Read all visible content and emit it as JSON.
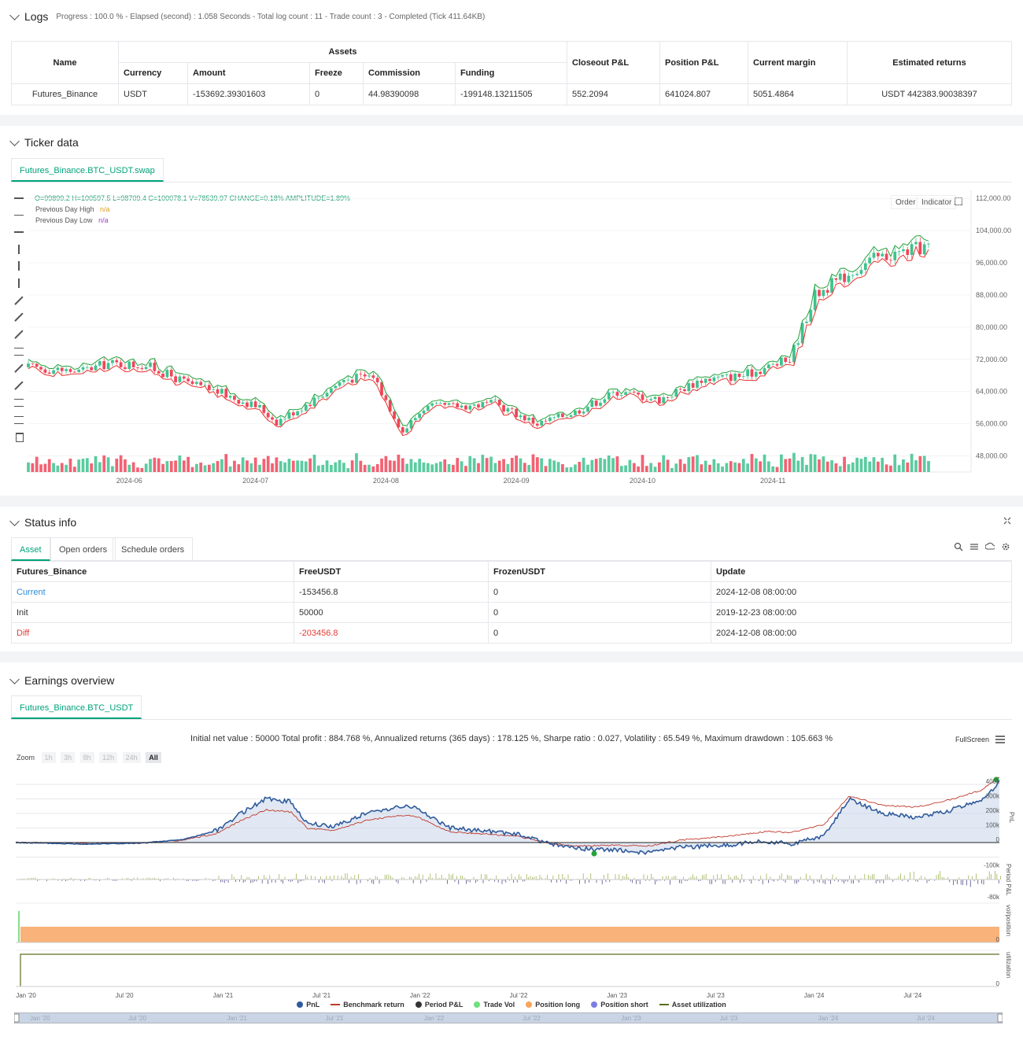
{
  "logs": {
    "title": "Logs",
    "progress": "Progress : 100.0 % - Elapsed (second) : 1.058 Seconds - Total log count : 11 - Trade count : 3 - Completed (Tick 411.64KB)"
  },
  "assets_table": {
    "headers": {
      "name": "Name",
      "assets": "Assets",
      "currency": "Currency",
      "amount": "Amount",
      "freeze": "Freeze",
      "commission": "Commission",
      "funding": "Funding",
      "closeout": "Closeout P&L",
      "position": "Position P&L",
      "margin": "Current margin",
      "returns": "Estimated returns"
    },
    "row": {
      "name": "Futures_Binance",
      "currency": "USDT",
      "amount": "-153692.39301603",
      "freeze": "0",
      "commission": "44.98390098",
      "funding": "-199148.13211505",
      "closeout": "552.2094",
      "position": "641024.807",
      "margin": "5051.4864",
      "returns": "USDT 442383.90038397"
    }
  },
  "ticker": {
    "title": "Ticker data",
    "tab": "Futures_Binance.BTC_USDT.swap",
    "ohlc": "O=99899.2 H=100597.5 L=98709.4 C=100078.1 V=78539.97 CHANGE=0.18% AMPLITUDE=1.89%",
    "legend_high": "Previous Day High",
    "legend_high_val": "n/a",
    "legend_low": "Previous Day Low",
    "legend_low_val": "n/a",
    "order_btn": "Order",
    "indicator_btn": "Indicator",
    "y_ticks": [
      "112,000.00",
      "104,000.00",
      "96,000.00",
      "88,000.00",
      "80,000.00",
      "72,000.00",
      "64,000.00",
      "56,000.00",
      "48,000.00"
    ],
    "x_ticks": [
      "2024-06",
      "2024-07",
      "2024-08",
      "2024-09",
      "2024-10",
      "2024-11"
    ],
    "colors": {
      "up": "#3ec28f",
      "down": "#f0465a",
      "high": "#22a33a",
      "low": "#e8322e"
    }
  },
  "chart_data": {
    "type": "candlestick",
    "y_range": [
      44000,
      114000
    ],
    "x_range": [
      "2024-05-08",
      "2024-12-08"
    ],
    "close_points": [
      [
        "2024-05-08",
        70000
      ],
      [
        "2024-05-20",
        69000
      ],
      [
        "2024-05-27",
        71000
      ],
      [
        "2024-06-05",
        70500
      ],
      [
        "2024-06-15",
        66000
      ],
      [
        "2024-06-22",
        64000
      ],
      [
        "2024-07-02",
        60000
      ],
      [
        "2024-07-06",
        56500
      ],
      [
        "2024-07-15",
        62000
      ],
      [
        "2024-07-22",
        67000
      ],
      [
        "2024-07-29",
        68000
      ],
      [
        "2024-08-05",
        54000
      ],
      [
        "2024-08-10",
        60000
      ],
      [
        "2024-08-20",
        60500
      ],
      [
        "2024-08-27",
        61000
      ],
      [
        "2024-09-06",
        56000
      ],
      [
        "2024-09-15",
        59000
      ],
      [
        "2024-09-25",
        64000
      ],
      [
        "2024-10-05",
        62000
      ],
      [
        "2024-10-15",
        67000
      ],
      [
        "2024-10-25",
        68000
      ],
      [
        "2024-11-05",
        72000
      ],
      [
        "2024-11-11",
        88000
      ],
      [
        "2024-11-20",
        94000
      ],
      [
        "2024-11-25",
        97000
      ],
      [
        "2024-12-05",
        99500
      ],
      [
        "2024-12-08",
        100078
      ]
    ]
  },
  "status": {
    "title": "Status info",
    "tabs": [
      "Asset",
      "Open orders",
      "Schedule orders"
    ],
    "headers": [
      "Futures_Binance",
      "FreeUSDT",
      "FrozenUSDT",
      "Update"
    ],
    "rows": [
      {
        "label": "Current",
        "free": "-153456.8",
        "frozen": "0",
        "update": "2024-12-08 08:00:00"
      },
      {
        "label": "Init",
        "free": "50000",
        "frozen": "0",
        "update": "2019-12-23 08:00:00"
      },
      {
        "label": "Diff",
        "free": "-203456.8",
        "frozen": "0",
        "update": "2024-12-08 08:00:00"
      }
    ]
  },
  "earnings": {
    "title": "Earnings overview",
    "tab": "Futures_Binance.BTC_USDT",
    "summary": "Initial net value : 50000 Total profit : 884.768 %, Annualized returns (365 days) : 178.125 %, Sharpe ratio : 0.027, Volatility : 65.549 %, Maximum drawdown : 105.663 %",
    "fullscreen": "FullScreen",
    "zoom_label": "Zoom",
    "zoom_opts": [
      "1h",
      "3h",
      "8h",
      "12h",
      "24h",
      "All"
    ],
    "y_ticks": [
      "400k",
      "300k",
      "200k",
      "100k",
      "0",
      "-100k"
    ],
    "y2_ticks": [
      "-80k"
    ],
    "y3_tick": "0",
    "y4_tick": "0",
    "axis_labels": [
      "PnL",
      "Period P&L",
      "vol/position",
      "utilization"
    ],
    "x_ticks": [
      "Jan '20",
      "Jul '20",
      "Jan '21",
      "Jul '21",
      "Jan '22",
      "Jul '22",
      "Jan '23",
      "Jul '23",
      "Jan '24",
      "Jul '24"
    ],
    "legend": [
      "PnL",
      "Benchmark return",
      "Period P&L",
      "Trade Vol",
      "Position long",
      "Position short",
      "Asset utilization"
    ]
  }
}
